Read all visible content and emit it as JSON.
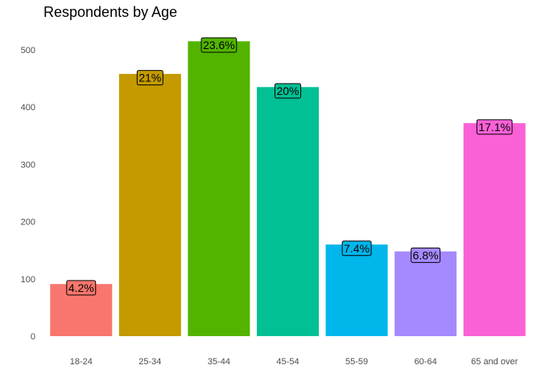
{
  "chart_data": {
    "type": "bar",
    "title": "Respondents by Age",
    "xlabel": "",
    "ylabel": "",
    "categories": [
      "18-24",
      "25-34",
      "35-44",
      "45-54",
      "55-59",
      "60-64",
      "65 and over"
    ],
    "values": [
      91,
      458,
      515,
      435,
      160,
      148,
      372
    ],
    "labels": [
      "4.2%",
      "21%",
      "23.6%",
      "20%",
      "7.4%",
      "6.8%",
      "17.1%"
    ],
    "colors": [
      "#F8766D",
      "#C49A00",
      "#53B400",
      "#00C094",
      "#00B6EB",
      "#A58AFF",
      "#FB61D7"
    ],
    "ylim": [
      0,
      530
    ],
    "yticks": [
      0,
      100,
      200,
      300,
      400,
      500
    ],
    "grid": false,
    "legend": "none"
  }
}
